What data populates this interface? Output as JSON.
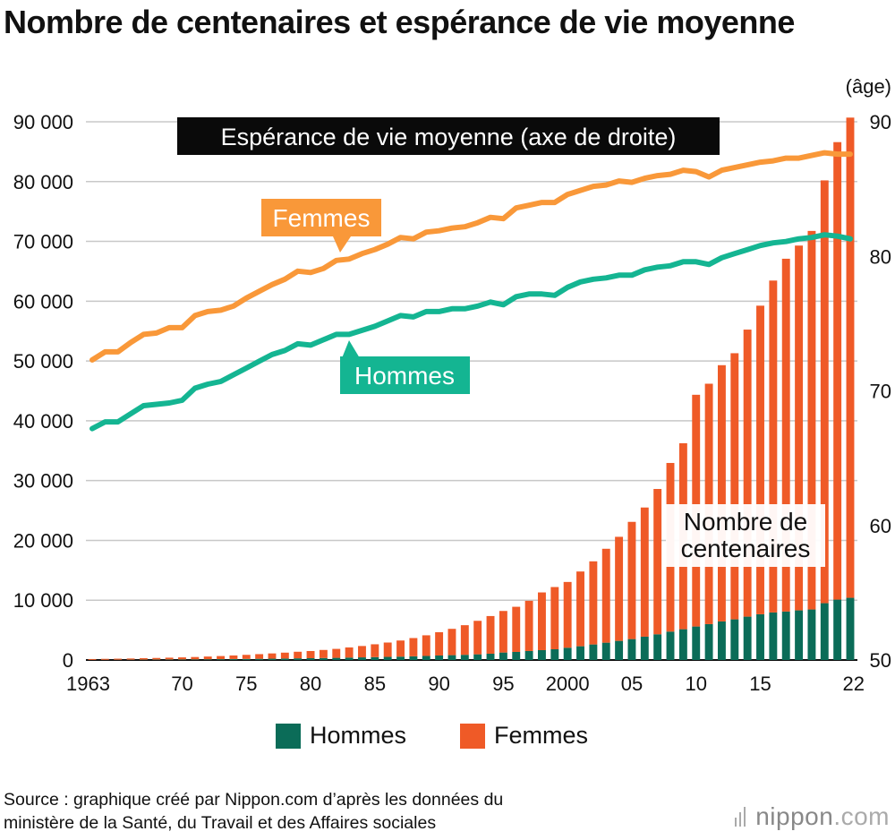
{
  "title": "Nombre de centenaires et espérance de vie moyenne",
  "source_lines": [
    "Source : graphique créé par Nippon.com d’après les données du",
    "ministère de la Santé, du Travail et des Affaires sociales"
  ],
  "brand": {
    "name": "nippon",
    "suffix": ".com"
  },
  "chart_data": {
    "type": "bar",
    "years": [
      1963,
      1964,
      1965,
      1966,
      1967,
      1968,
      1969,
      1970,
      1971,
      1972,
      1973,
      1974,
      1975,
      1976,
      1977,
      1978,
      1979,
      1980,
      1981,
      1982,
      1983,
      1984,
      1985,
      1986,
      1987,
      1988,
      1989,
      1990,
      1991,
      1992,
      1993,
      1994,
      1995,
      1996,
      1997,
      1998,
      1999,
      2000,
      2001,
      2002,
      2003,
      2004,
      2005,
      2006,
      2007,
      2008,
      2009,
      2010,
      2011,
      2012,
      2013,
      2014,
      2015,
      2016,
      2017,
      2018,
      2019,
      2020,
      2021,
      2022
    ],
    "x_tick_labels": [
      {
        "year": 1963,
        "label": "1963"
      },
      {
        "year": 1970,
        "label": "70"
      },
      {
        "year": 1975,
        "label": "75"
      },
      {
        "year": 1980,
        "label": "80"
      },
      {
        "year": 1985,
        "label": "85"
      },
      {
        "year": 1990,
        "label": "90"
      },
      {
        "year": 1995,
        "label": "95"
      },
      {
        "year": 2000,
        "label": "2000"
      },
      {
        "year": 2005,
        "label": "05"
      },
      {
        "year": 2010,
        "label": "10"
      },
      {
        "year": 2015,
        "label": "15"
      },
      {
        "year": 2022,
        "label": "22"
      }
    ],
    "left_axis": {
      "range": [
        0,
        90000
      ],
      "ticks": [
        0,
        10000,
        20000,
        30000,
        40000,
        50000,
        60000,
        70000,
        80000,
        90000
      ],
      "tick_labels": [
        "0",
        "10 000",
        "20 000",
        "30 000",
        "40 000",
        "50 000",
        "60 000",
        "70 000",
        "80 000",
        "90 000"
      ]
    },
    "right_axis": {
      "label": "(âge)",
      "range": [
        50,
        90
      ],
      "ticks": [
        50,
        60,
        70,
        80,
        90
      ],
      "tick_labels": [
        "50",
        "60",
        "70",
        "80",
        "90"
      ]
    },
    "grid": true,
    "bar_series": [
      {
        "name": "Hommes",
        "color": "#0b6c58",
        "values": [
          20,
          30,
          40,
          50,
          60,
          70,
          80,
          90,
          100,
          120,
          140,
          160,
          180,
          200,
          220,
          250,
          280,
          300,
          330,
          360,
          400,
          440,
          480,
          520,
          560,
          620,
          680,
          750,
          810,
          870,
          950,
          1050,
          1250,
          1350,
          1500,
          1650,
          1800,
          2050,
          2300,
          2600,
          2900,
          3200,
          3500,
          3900,
          4300,
          4750,
          5150,
          5600,
          6000,
          6450,
          6800,
          7250,
          7650,
          7950,
          8100,
          8300,
          8450,
          9500,
          10100,
          10400
        ]
      },
      {
        "name": "Femmes",
        "color": "#ef5a27",
        "values": [
          140,
          160,
          180,
          200,
          240,
          270,
          310,
          350,
          400,
          460,
          520,
          600,
          680,
          780,
          880,
          980,
          1100,
          1200,
          1350,
          1500,
          1700,
          1900,
          2150,
          2400,
          2700,
          3050,
          3450,
          3900,
          4400,
          4950,
          5600,
          6300,
          6950,
          7550,
          8400,
          9650,
          10400,
          11000,
          12500,
          13900,
          15700,
          17400,
          19600,
          21600,
          24300,
          28200,
          31100,
          38750,
          40200,
          42850,
          44500,
          48000,
          51600,
          55500,
          59000,
          61000,
          63300,
          70700,
          76500,
          80300
        ]
      }
    ],
    "line_series": [
      {
        "name": "Femmes",
        "color": "#f99839",
        "values": [
          72.3,
          72.9,
          72.9,
          73.6,
          74.2,
          74.3,
          74.7,
          74.7,
          75.6,
          75.9,
          76.0,
          76.3,
          76.9,
          77.4,
          77.9,
          78.3,
          78.9,
          78.8,
          79.1,
          79.7,
          79.8,
          80.2,
          80.5,
          80.9,
          81.4,
          81.3,
          81.8,
          81.9,
          82.1,
          82.2,
          82.5,
          82.9,
          82.8,
          83.6,
          83.8,
          84.0,
          84.0,
          84.6,
          84.9,
          85.2,
          85.3,
          85.6,
          85.5,
          85.8,
          86.0,
          86.1,
          86.4,
          86.3,
          85.9,
          86.4,
          86.6,
          86.8,
          87.0,
          87.1,
          87.3,
          87.3,
          87.5,
          87.7,
          87.6,
          87.6
        ]
      },
      {
        "name": "Hommes",
        "color": "#14b592",
        "values": [
          67.2,
          67.7,
          67.7,
          68.3,
          68.9,
          69.0,
          69.1,
          69.3,
          70.2,
          70.5,
          70.7,
          71.2,
          71.7,
          72.2,
          72.7,
          73.0,
          73.5,
          73.4,
          73.8,
          74.2,
          74.2,
          74.5,
          74.8,
          75.2,
          75.6,
          75.5,
          75.9,
          75.9,
          76.1,
          76.1,
          76.3,
          76.6,
          76.4,
          77.0,
          77.2,
          77.2,
          77.1,
          77.7,
          78.1,
          78.3,
          78.4,
          78.6,
          78.6,
          79.0,
          79.2,
          79.3,
          79.6,
          79.6,
          79.4,
          79.9,
          80.2,
          80.5,
          80.8,
          81.0,
          81.1,
          81.3,
          81.4,
          81.6,
          81.5,
          81.3
        ]
      }
    ],
    "legend": [
      {
        "label": "Hommes",
        "color": "#0b6c58"
      },
      {
        "label": "Femmes",
        "color": "#ef5a27"
      }
    ],
    "annotations": {
      "life_expectancy_box": "Espérance de vie moyenne (axe de droite)",
      "femmes_label": "Femmes",
      "hommes_label": "Hommes",
      "centenarians_lines": [
        "Nombre de",
        "centenaires"
      ]
    }
  }
}
